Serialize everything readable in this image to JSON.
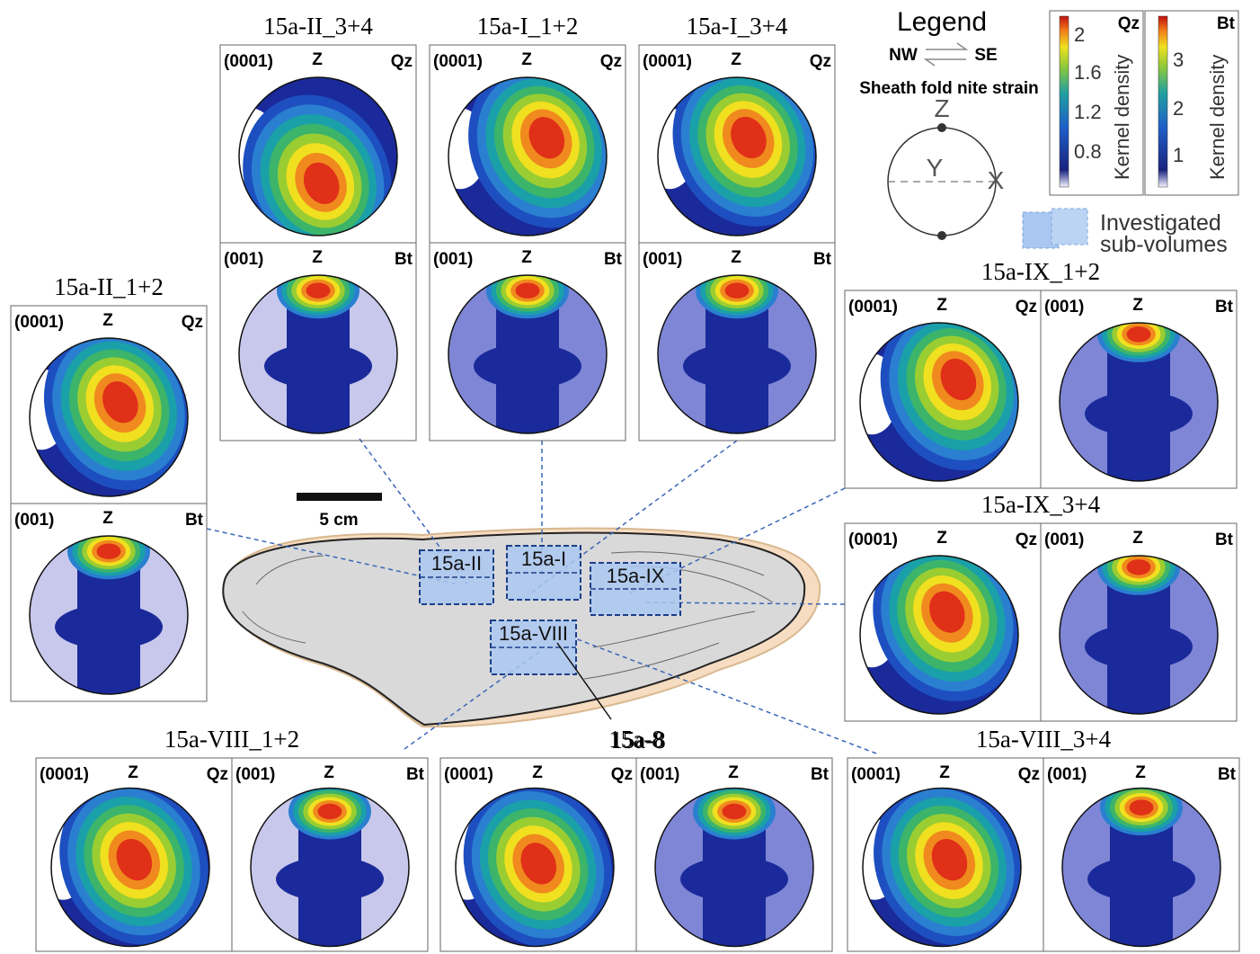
{
  "legend": {
    "title": "Legend",
    "nw": "NW",
    "se": "SE",
    "strain": "Sheath fold nite strain",
    "z": "Z",
    "y": "Y",
    "x": "X",
    "subvolumes": [
      "Investigated",
      "sub-volumes"
    ]
  },
  "colorbars": [
    {
      "mineral": "Qz",
      "ticks": [
        "2",
        "1.6",
        "1.2",
        "0.8"
      ],
      "label": "Kernel density"
    },
    {
      "mineral": "Bt",
      "ticks": [
        "3",
        "2",
        "1"
      ],
      "label": "Kernel density"
    }
  ],
  "scale": "5 cm",
  "sample": {
    "boxes": [
      "15a-II",
      "15a-I",
      "15a-IX",
      "15a-VIII"
    ],
    "pointer": "15a-8"
  },
  "panels": [
    {
      "title": "15a-II_3+4",
      "cells": [
        {
          "plane": "(0001)",
          "axis": "Z",
          "mineral": "Qz"
        },
        {
          "plane": "(001)",
          "axis": "Z",
          "mineral": "Bt"
        }
      ]
    },
    {
      "title": "15a-I_1+2",
      "cells": [
        {
          "plane": "(0001)",
          "axis": "Z",
          "mineral": "Qz"
        },
        {
          "plane": "(001)",
          "axis": "Z",
          "mineral": "Bt"
        }
      ]
    },
    {
      "title": "15a-I_3+4",
      "cells": [
        {
          "plane": "(0001)",
          "axis": "Z",
          "mineral": "Qz"
        },
        {
          "plane": "(001)",
          "axis": "Z",
          "mineral": "Bt"
        }
      ]
    },
    {
      "title": "15a-II_1+2",
      "cells": [
        {
          "plane": "(0001)",
          "axis": "Z",
          "mineral": "Qz"
        },
        {
          "plane": "(001)",
          "axis": "Z",
          "mineral": "Bt"
        }
      ]
    },
    {
      "title": "15a-IX_1+2",
      "cells": [
        {
          "plane": "(0001)",
          "axis": "Z",
          "mineral": "Qz"
        },
        {
          "plane": "(001)",
          "axis": "Z",
          "mineral": "Bt"
        }
      ]
    },
    {
      "title": "15a-IX_3+4",
      "cells": [
        {
          "plane": "(0001)",
          "axis": "Z",
          "mineral": "Qz"
        },
        {
          "plane": "(001)",
          "axis": "Z",
          "mineral": "Bt"
        }
      ]
    },
    {
      "title": "15a-VIII_1+2",
      "cells": [
        {
          "plane": "(0001)",
          "axis": "Z",
          "mineral": "Qz"
        },
        {
          "plane": "(001)",
          "axis": "Z",
          "mineral": "Bt"
        }
      ]
    },
    {
      "title": "15a-8",
      "cells": [
        {
          "plane": "(0001)",
          "axis": "Z",
          "mineral": "Qz"
        },
        {
          "plane": "(001)",
          "axis": "Z",
          "mineral": "Bt"
        }
      ]
    },
    {
      "title": "15a-VIII_3+4",
      "cells": [
        {
          "plane": "(0001)",
          "axis": "Z",
          "mineral": "Qz"
        },
        {
          "plane": "(001)",
          "axis": "Z",
          "mineral": "Bt"
        }
      ]
    }
  ]
}
